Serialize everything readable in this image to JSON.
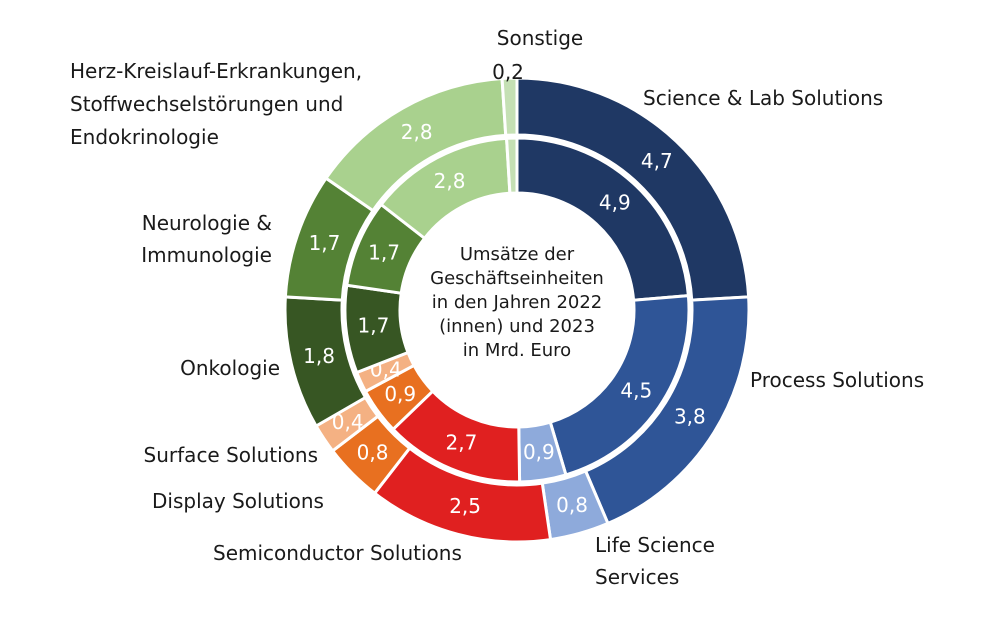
{
  "chart_data": {
    "type": "donut",
    "title": "Umsätze der\nGeschäftseinheiten\nin den Jahren 2022\n(innen) und 2023\nin Mrd. Euro",
    "categories": [
      "Science & Lab Solutions",
      "Process Solutions",
      "Life Science\nServices",
      "Semiconductor Solutions",
      "Display Solutions",
      "Surface Solutions",
      "Onkologie",
      "Neurologie &\nImmunologie",
      "Herz-Kreislauf-Erkrankungen,\nStoffwechselstörungen und\nEndokrinologie",
      "Sonstige"
    ],
    "colors": [
      "#1f3864",
      "#2f5597",
      "#8eaadb",
      "#e02020",
      "#e87020",
      "#f4b183",
      "#375623",
      "#548235",
      "#a9d18e",
      "#c5e0b4"
    ],
    "series": [
      {
        "name": "2022",
        "values": [
          4.9,
          4.5,
          0.9,
          2.7,
          0.9,
          0.4,
          1.7,
          1.7,
          2.8,
          0.2
        ],
        "value_labels": [
          "4,9",
          "4,5",
          "0,9",
          "2,7",
          "0,9",
          "0,4",
          "1,7",
          "1,7",
          "2,8",
          null
        ]
      },
      {
        "name": "2023",
        "values": [
          4.7,
          3.8,
          0.8,
          2.5,
          0.8,
          0.4,
          1.8,
          1.7,
          2.8,
          0.2
        ],
        "value_labels": [
          "4,7",
          "3,8",
          "0,8",
          "2,5",
          "0,8",
          "0,4",
          "1,8",
          "1,7",
          "2,8",
          "0,2"
        ]
      }
    ]
  }
}
